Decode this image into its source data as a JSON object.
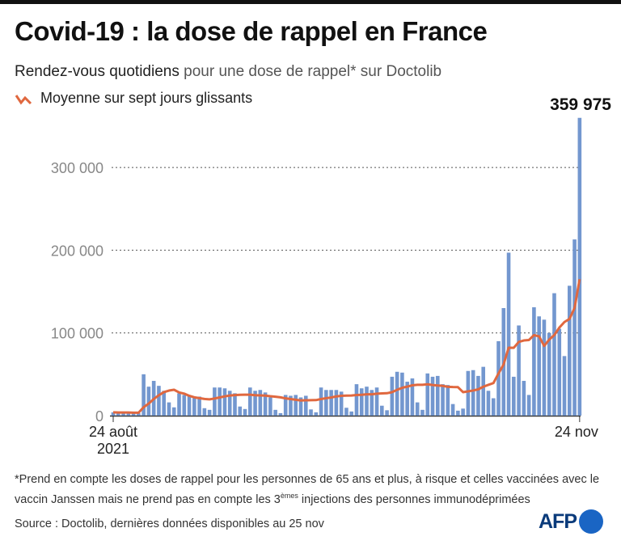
{
  "title": "Covid-19 : la dose de rappel en France",
  "subtitle": {
    "bold": "Rendez-vous quotidiens",
    "rest": " pour une dose de rappel* sur Doctolib"
  },
  "legend": {
    "label": "Moyenne sur sept jours glissants"
  },
  "footnote": {
    "part1": "*Prend en compte les doses de rappel pour les personnes de 65 ans et plus, à risque et celles vaccinées avec le vaccin Janssen mais ne prend pas en compte les 3",
    "sup": "èmes",
    "part2": " injections des personnes immunodéprimées"
  },
  "source": "Source : Doctolib, dernières données disponibles au 25 nov",
  "logo": "AFP",
  "colors": {
    "bars": "#7397cf",
    "line": "#e0683f"
  },
  "chart_data": {
    "type": "bar",
    "title": "Rendez-vous quotidiens pour une dose de rappel sur Doctolib",
    "x_start": "24 août 2021",
    "x_end": "24 nov",
    "x_labels": [
      {
        "line1": "24 août",
        "line2": "2021"
      },
      {
        "line1": "24 nov",
        "line2": ""
      }
    ],
    "ylim": [
      0,
      360000
    ],
    "yticks": [
      0,
      100000,
      200000,
      300000
    ],
    "ytick_labels": [
      "0",
      "100 000",
      "200 000",
      "300 000"
    ],
    "grid": true,
    "annotation": "359 975",
    "series": [
      {
        "name": "Rendez-vous quotidiens",
        "type": "bar",
        "values": [
          4000,
          3500,
          4000,
          3500,
          3000,
          3000,
          50000,
          35000,
          42000,
          36000,
          30000,
          16000,
          10000,
          27000,
          25000,
          24000,
          23000,
          23000,
          9000,
          7000,
          34000,
          34000,
          33000,
          30000,
          27000,
          11000,
          8000,
          34000,
          30000,
          31000,
          28000,
          22000,
          7000,
          3000,
          25000,
          24000,
          25000,
          22000,
          24000,
          7500,
          4000,
          34000,
          31000,
          31000,
          31000,
          29000,
          9500,
          5000,
          38000,
          33000,
          35000,
          31000,
          34000,
          12000,
          6500,
          47000,
          53000,
          52000,
          41000,
          45000,
          16000,
          7000,
          51000,
          47000,
          48000,
          38000,
          37000,
          14000,
          6000,
          8500,
          54000,
          55000,
          48000,
          59000,
          30000,
          21000,
          90000,
          130000,
          197000,
          47000,
          109000,
          42000,
          25000,
          131000,
          120000,
          116000,
          100000,
          148000,
          105000,
          72000,
          157000,
          213000,
          359975
        ]
      },
      {
        "name": "Moyenne sur sept jours glissants",
        "type": "line",
        "window": 7
      }
    ]
  }
}
